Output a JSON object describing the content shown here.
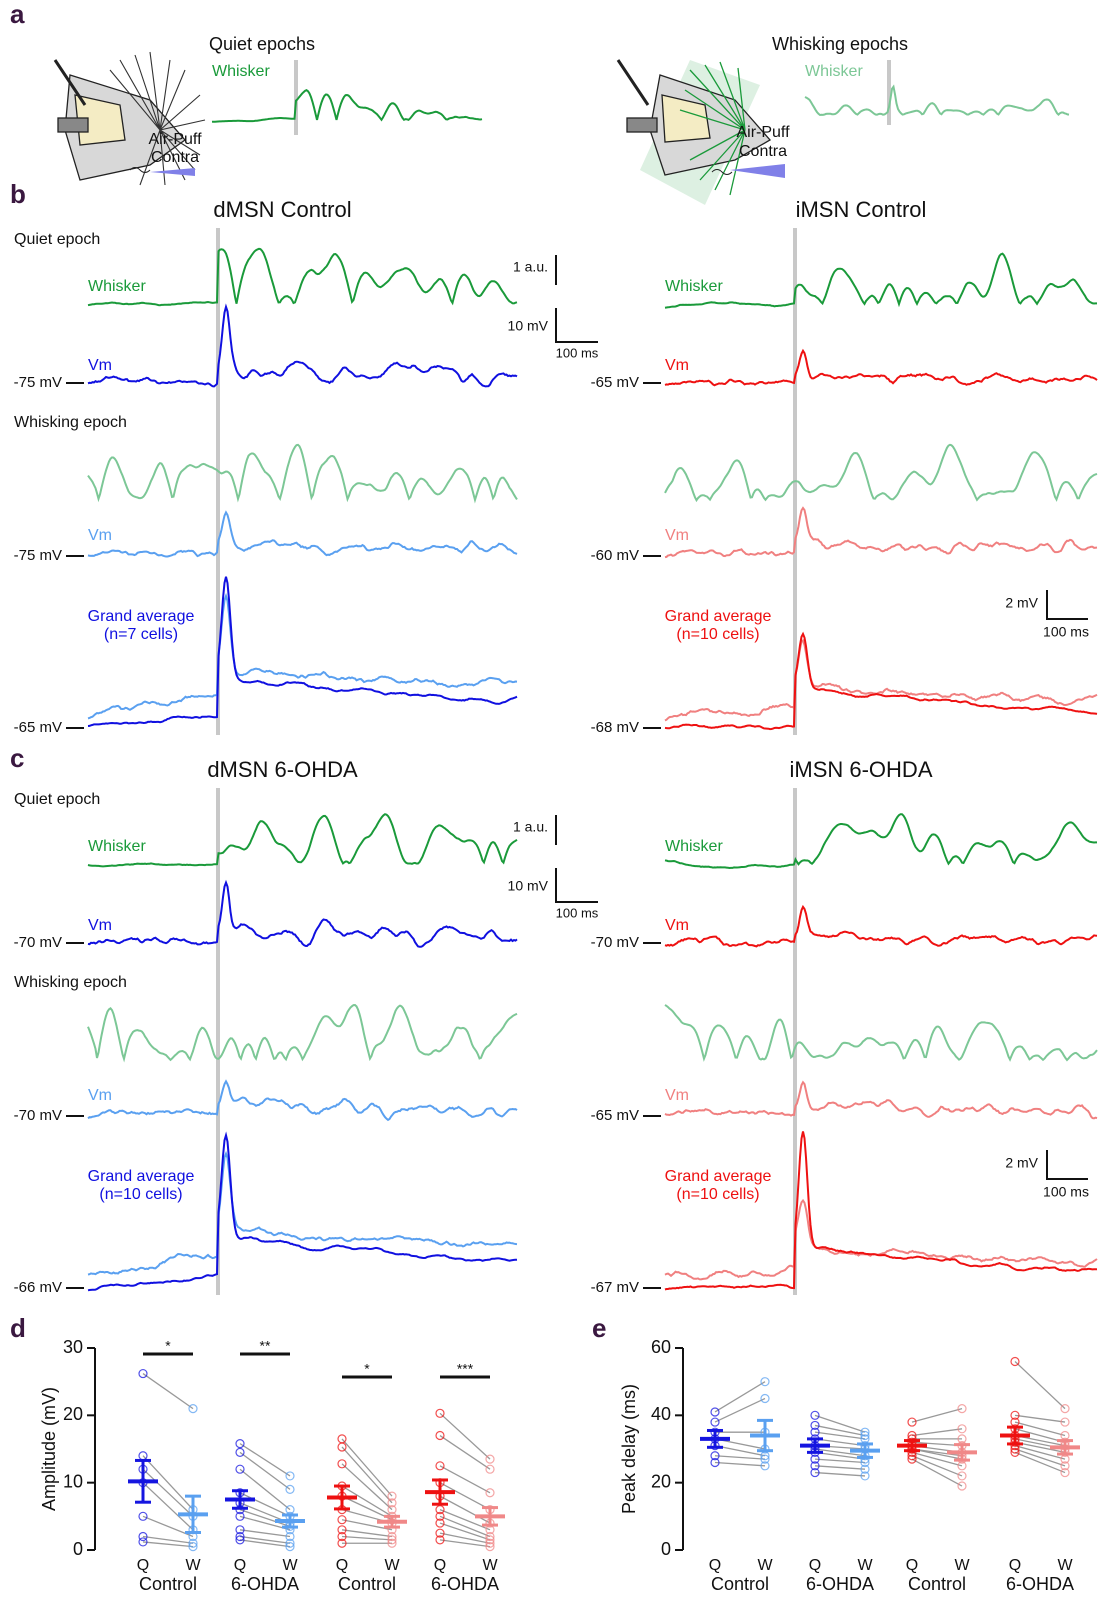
{
  "panel_labels": {
    "a": "a",
    "b": "b",
    "c": "c",
    "d": "d",
    "e": "e"
  },
  "panel_a": {
    "quiet": {
      "title": "Quiet epochs",
      "whisker": "Whisker",
      "stimulus": [
        "Air-Puff",
        "Contra"
      ]
    },
    "whisking": {
      "title": "Whisking epochs",
      "whisker": "Whisker",
      "stimulus": [
        "Air-Puff",
        "Contra"
      ]
    }
  },
  "epoch_labels": {
    "quiet": "Quiet epoch",
    "whisking": "Whisking epoch"
  },
  "trace_panels": [
    {
      "title": "dMSN Control",
      "whisker": "Whisker",
      "vm": "Vm",
      "quiet_baseline": "-75 mV",
      "whisking_vm": "Vm",
      "whisking_baseline": "-75 mV",
      "average": [
        "Grand average",
        "(n=7 cells)"
      ],
      "average_baseline": "-65 mV",
      "scale": {
        "whisker": "1 a.u.",
        "vm": "10 mV",
        "time": "100 ms"
      }
    },
    {
      "title": "iMSN Control",
      "whisker": "Whisker",
      "vm": "Vm",
      "quiet_baseline": "-65 mV",
      "whisking_vm": "Vm",
      "whisking_baseline": "-60 mV",
      "average": [
        "Grand average",
        "(n=10 cells)"
      ],
      "average_baseline": "-68 mV",
      "scale": {
        "vm": "2 mV",
        "time": "100 ms"
      }
    },
    {
      "title": "dMSN 6-OHDA",
      "whisker": "Whisker",
      "vm": "Vm",
      "quiet_baseline": "-70 mV",
      "whisking_vm": "Vm",
      "whisking_baseline": "-70 mV",
      "average": [
        "Grand average",
        "(n=10 cells)"
      ],
      "average_baseline": "-66 mV",
      "scale": {
        "whisker": "1 a.u.",
        "vm": "10 mV",
        "time": "100 ms"
      }
    },
    {
      "title": "iMSN 6-OHDA",
      "whisker": "Whisker",
      "vm": "Vm",
      "quiet_baseline": "-70 mV",
      "whisking_vm": "Vm",
      "whisking_baseline": "-65 mV",
      "average": [
        "Grand average",
        "(n=10 cells)"
      ],
      "average_baseline": "-67 mV",
      "scale": {
        "vm": "2 mV",
        "time": "100 ms"
      }
    }
  ],
  "chart_data": [
    {
      "type": "paired-dot",
      "y_label": "Amplitude (mV)",
      "ylim": [
        0,
        30
      ],
      "yticks": [
        0,
        10,
        20,
        30
      ],
      "categories": [
        "Q",
        "W"
      ],
      "groups": [
        {
          "name": "Control",
          "colors": [
            "#1515e0",
            "#5aa0f0"
          ],
          "mean": [
            10.2,
            5.3
          ],
          "error": [
            3.1,
            2.7
          ],
          "q": [
            26.2,
            14,
            12,
            10,
            5,
            2,
            1.2
          ],
          "w": [
            21,
            6,
            5,
            3,
            2,
            1,
            0.5
          ],
          "significance": "*"
        },
        {
          "name": "6-OHDA",
          "colors": [
            "#1515e0",
            "#5aa0f0"
          ],
          "mean": [
            7.5,
            4.3
          ],
          "error": [
            1.3,
            0.9
          ],
          "q": [
            15.8,
            14.5,
            12,
            8.5,
            7,
            6,
            5,
            3,
            2,
            1.5
          ],
          "w": [
            11,
            9,
            6,
            5,
            4,
            3.5,
            3,
            2,
            1,
            0.5
          ],
          "significance": "**"
        },
        {
          "name": "Control",
          "colors": [
            "#ee1111",
            "#f08888"
          ],
          "mean": [
            7.8,
            4.2
          ],
          "error": [
            1.7,
            0.8
          ],
          "q": [
            16.5,
            15.3,
            12.8,
            9.5,
            8,
            6,
            4.5,
            3,
            2,
            1
          ],
          "w": [
            8,
            7,
            6,
            5,
            4.5,
            4,
            3,
            2,
            1.5,
            1
          ],
          "significance": "*"
        },
        {
          "name": "6-OHDA",
          "colors": [
            "#ee1111",
            "#f08888"
          ],
          "mean": [
            8.6,
            5.0
          ],
          "error": [
            1.8,
            1.3
          ],
          "q": [
            20.3,
            17,
            12.5,
            10,
            8,
            6,
            5,
            4,
            2.5,
            1.5
          ],
          "w": [
            13.5,
            12,
            8.5,
            6,
            4,
            3,
            2,
            1.5,
            1,
            0.5
          ],
          "significance": "***"
        }
      ]
    },
    {
      "type": "paired-dot",
      "y_label": "Peak delay (ms)",
      "ylim": [
        0,
        60
      ],
      "yticks": [
        0,
        20,
        40,
        60
      ],
      "categories": [
        "Q",
        "W"
      ],
      "groups": [
        {
          "name": "Control",
          "colors": [
            "#1515e0",
            "#5aa0f0"
          ],
          "mean": [
            33,
            34
          ],
          "error": [
            2.5,
            4.5
          ],
          "q": [
            41,
            38,
            35,
            33,
            31,
            28,
            26
          ],
          "w": [
            50,
            45,
            35,
            30,
            28,
            27,
            25
          ]
        },
        {
          "name": "6-OHDA",
          "colors": [
            "#1515e0",
            "#5aa0f0"
          ],
          "mean": [
            31,
            29.5
          ],
          "error": [
            2,
            2
          ],
          "q": [
            40,
            37,
            35,
            33,
            31,
            30,
            29,
            27,
            25,
            23
          ],
          "w": [
            35,
            34,
            33,
            31,
            30,
            28,
            27,
            26,
            24,
            22
          ]
        },
        {
          "name": "Control",
          "colors": [
            "#ee1111",
            "#f08888"
          ],
          "mean": [
            31,
            29
          ],
          "error": [
            1.5,
            2.3
          ],
          "q": [
            38,
            34,
            33,
            32,
            31,
            30,
            30,
            29,
            28,
            27
          ],
          "w": [
            42,
            36,
            33,
            31,
            29,
            28,
            27,
            25,
            22,
            19
          ]
        },
        {
          "name": "6-OHDA",
          "colors": [
            "#ee1111",
            "#f08888"
          ],
          "mean": [
            34,
            30.5
          ],
          "error": [
            2.5,
            2
          ],
          "q": [
            56,
            40,
            38,
            36,
            34,
            33,
            32,
            31,
            30,
            29
          ],
          "w": [
            42,
            38,
            34,
            32,
            31,
            30,
            29,
            27,
            25,
            23
          ]
        }
      ]
    }
  ]
}
